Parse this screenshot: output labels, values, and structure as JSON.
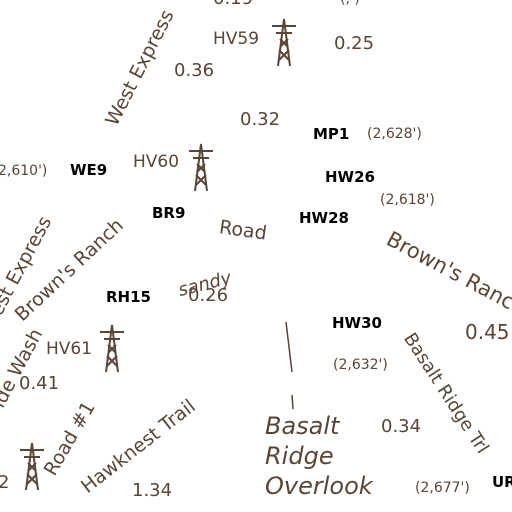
{
  "colors": {
    "brown": "#5a4536",
    "black": "#000000",
    "background": "#ffffff"
  },
  "roads": [
    {
      "id": "west-express-1",
      "text": "West Express"
    },
    {
      "id": "west-express-2",
      "text": "est Express"
    },
    {
      "id": "browns-ranch-1",
      "text": "Brown's Ranch"
    },
    {
      "id": "browns-ranch-2",
      "text": "Brown's Ranc"
    },
    {
      "id": "road",
      "text": "Road"
    },
    {
      "id": "sandy",
      "text": "sandy"
    },
    {
      "id": "wash",
      "text": "ide Wash"
    },
    {
      "id": "road-1",
      "text": "Road #1"
    },
    {
      "id": "hawknest-trail",
      "text": "Hawknest Trail"
    },
    {
      "id": "basalt-ridge-trl",
      "text": "Basalt Ridge Trl"
    }
  ],
  "codes": [
    {
      "id": "hv59",
      "text": "HV59"
    },
    {
      "id": "hv60",
      "text": "HV60"
    },
    {
      "id": "hv61",
      "text": "HV61"
    },
    {
      "id": "we9",
      "text": "WE9"
    },
    {
      "id": "br9",
      "text": "BR9"
    },
    {
      "id": "rh15",
      "text": "RH15"
    },
    {
      "id": "mp1",
      "text": "MP1"
    },
    {
      "id": "hw26",
      "text": "HW26"
    },
    {
      "id": "hw28",
      "text": "HW28"
    },
    {
      "id": "hw30",
      "text": "HW30"
    },
    {
      "id": "ur",
      "text": "UR"
    }
  ],
  "distances": [
    {
      "id": "d019",
      "text": "0.19"
    },
    {
      "id": "d025",
      "text": "0.25"
    },
    {
      "id": "d036",
      "text": "0.36"
    },
    {
      "id": "d032",
      "text": "0.32"
    },
    {
      "id": "d026",
      "text": "0.26"
    },
    {
      "id": "d045",
      "text": "0.45"
    },
    {
      "id": "d041",
      "text": "0.41"
    },
    {
      "id": "d034",
      "text": "0.34"
    },
    {
      "id": "d134",
      "text": "1.34"
    },
    {
      "id": "d2",
      "text": "2"
    }
  ],
  "elevations": [
    {
      "id": "e2610",
      "text": "2,610')"
    },
    {
      "id": "e2628",
      "text": "(2,628')"
    },
    {
      "id": "e2618",
      "text": "(2,618')"
    },
    {
      "id": "e2632",
      "text": "(2,632')"
    },
    {
      "id": "e2677",
      "text": "(2,677')"
    },
    {
      "id": "etop",
      "text": "(,     )"
    }
  ],
  "overlook": {
    "line1": "Basalt",
    "line2": "Ridge",
    "line3": "Overlook"
  },
  "icons": [
    "power-tower-icon"
  ]
}
